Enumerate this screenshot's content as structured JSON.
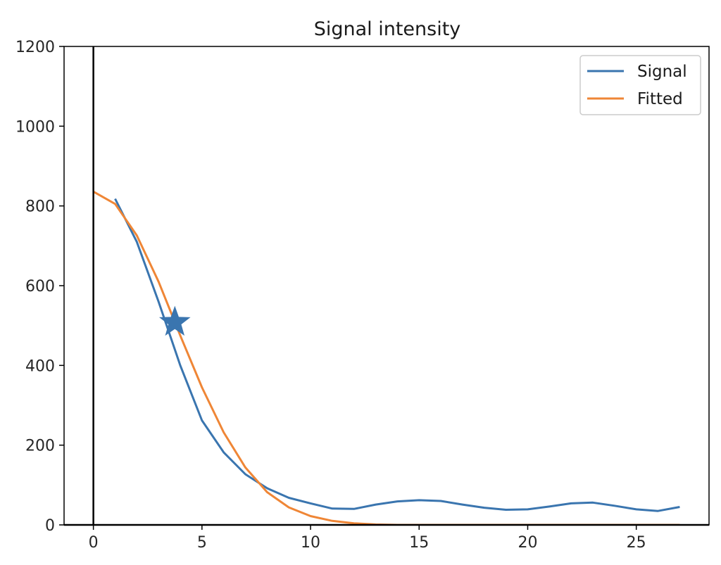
{
  "chart_data": {
    "type": "line",
    "title": "Signal intensity",
    "xlabel": "",
    "ylabel": "",
    "xlim": [
      -1.35,
      28.35
    ],
    "ylim": [
      0,
      1200
    ],
    "xticks": [
      0,
      5,
      10,
      15,
      20,
      25
    ],
    "yticks": [
      0,
      200,
      400,
      600,
      800,
      1000,
      1200
    ],
    "grid": false,
    "legend_position": "top-right",
    "vline_x": 0,
    "series": [
      {
        "name": "Signal",
        "color": "#3a75af",
        "x": [
          1,
          2,
          3,
          4,
          5,
          6,
          7,
          8,
          9,
          10,
          11,
          12,
          13,
          14,
          15,
          16,
          17,
          18,
          19,
          20,
          21,
          22,
          23,
          24,
          25,
          26,
          27
        ],
        "values": [
          818,
          710,
          560,
          400,
          262,
          182,
          127,
          92,
          68,
          54,
          41,
          40,
          51,
          59,
          62,
          60,
          51,
          43,
          38,
          39,
          46,
          54,
          56,
          48,
          39,
          35,
          45
        ]
      },
      {
        "name": "Fitted",
        "color": "#ef8636",
        "x": [
          0,
          1,
          2,
          3,
          4,
          5,
          6,
          7,
          8,
          9,
          10,
          11,
          12,
          13,
          14,
          15,
          16,
          17,
          18,
          19,
          20,
          21,
          22,
          23,
          24,
          25,
          26,
          27
        ],
        "values": [
          836,
          805,
          726,
          610,
          475,
          345,
          232,
          144,
          82,
          44,
          22,
          10,
          4,
          1,
          0,
          0,
          0,
          0,
          0,
          0,
          0,
          0,
          0,
          0,
          0,
          0,
          0,
          0
        ]
      }
    ],
    "marker": {
      "shape": "star",
      "x": 3.75,
      "y": 508,
      "color": "#3a75af"
    }
  }
}
